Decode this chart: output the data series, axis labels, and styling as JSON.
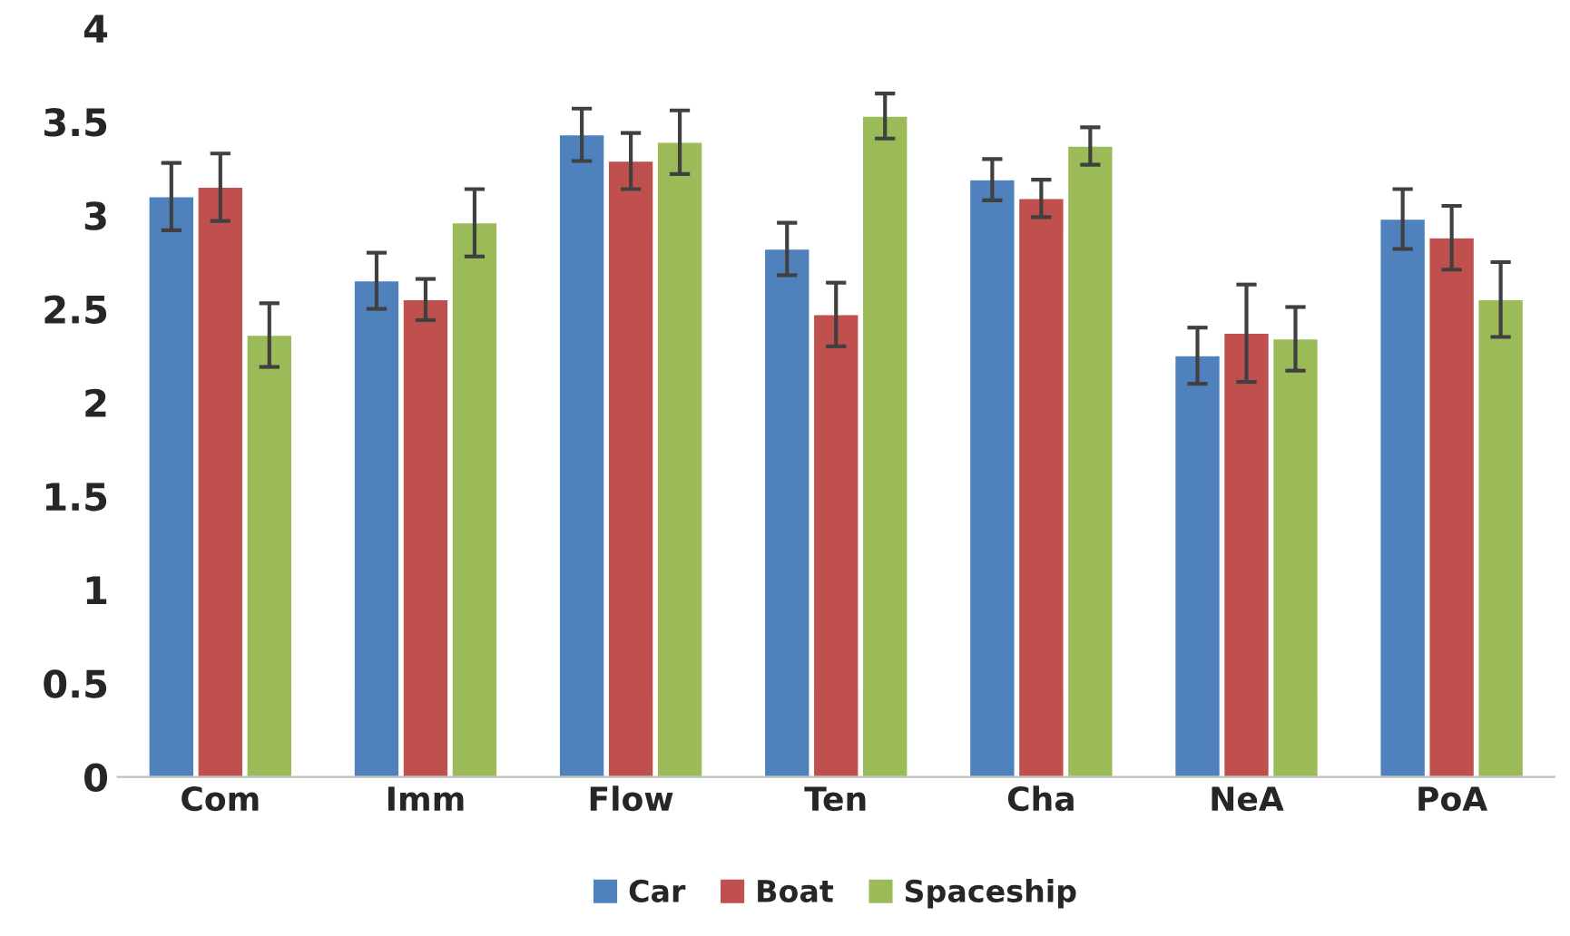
{
  "chart_data": {
    "type": "bar",
    "categories": [
      "Com",
      "Imm",
      "Flow",
      "Ten",
      "Cha",
      "NeA",
      "PoA"
    ],
    "series": [
      {
        "name": "Car",
        "color": "#4f81bd",
        "values": [
          3.1,
          2.65,
          3.43,
          2.82,
          3.19,
          2.25,
          2.98
        ],
        "errors": [
          0.18,
          0.15,
          0.14,
          0.14,
          0.11,
          0.15,
          0.16
        ]
      },
      {
        "name": "Boat",
        "color": "#c0504d",
        "values": [
          3.15,
          2.55,
          3.29,
          2.47,
          3.09,
          2.37,
          2.88
        ],
        "errors": [
          0.18,
          0.11,
          0.15,
          0.17,
          0.1,
          0.26,
          0.17
        ]
      },
      {
        "name": "Spaceship",
        "color": "#9bbb59",
        "values": [
          2.36,
          2.96,
          3.39,
          3.53,
          3.37,
          2.34,
          2.55
        ],
        "errors": [
          0.17,
          0.18,
          0.17,
          0.12,
          0.1,
          0.17,
          0.2
        ]
      }
    ],
    "ylim": [
      0,
      4
    ],
    "yticks": [
      0,
      0.5,
      1,
      1.5,
      2,
      2.5,
      3,
      3.5,
      4
    ],
    "grid": false,
    "legend": "bottom"
  }
}
